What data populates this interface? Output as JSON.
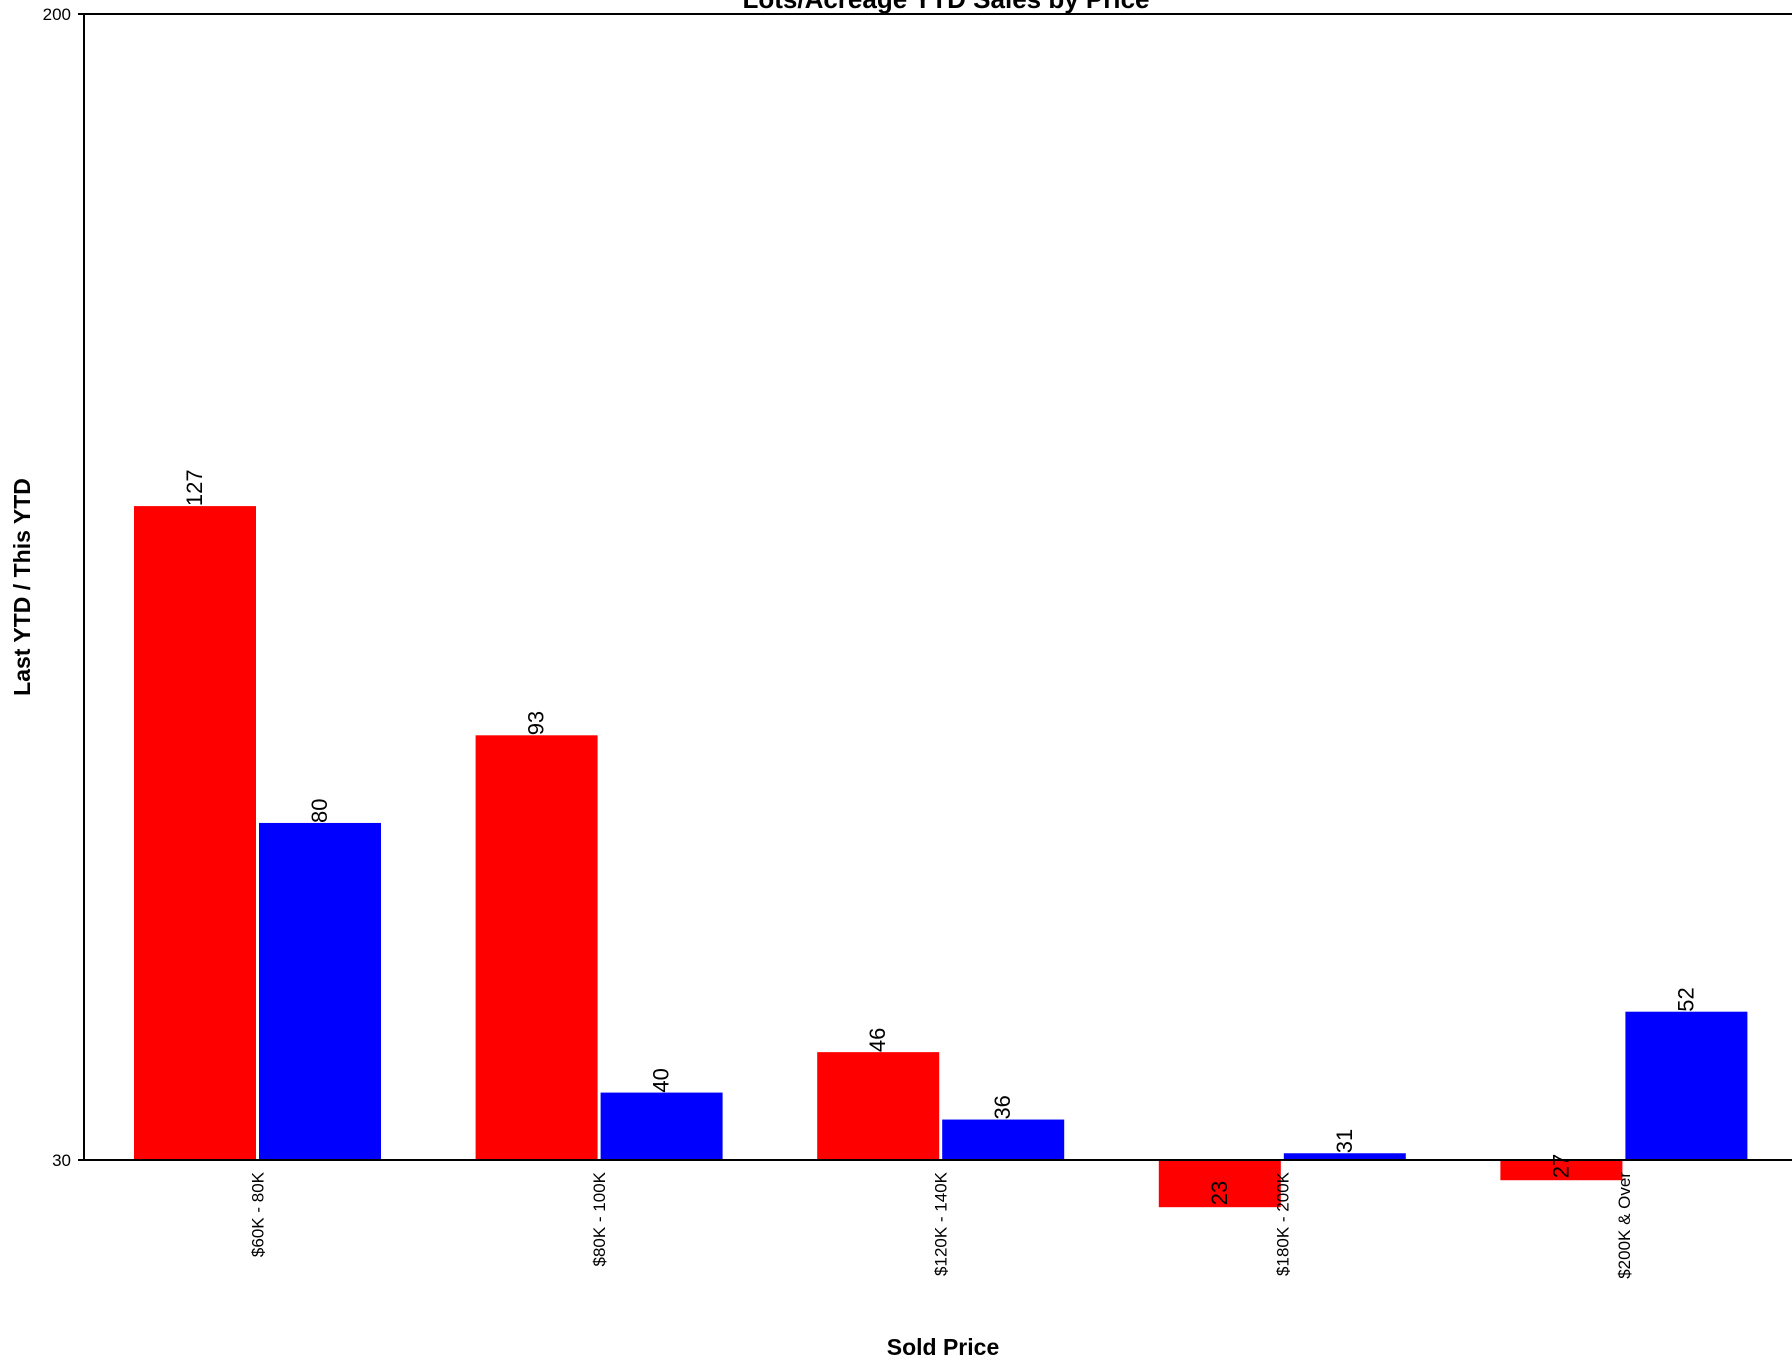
{
  "chart_data": {
    "type": "bar",
    "title": "Lots/Acreage YTD Sales by Price",
    "xlabel": "Sold Price",
    "ylabel": "Last YTD / This YTD",
    "ylim": [
      30,
      200
    ],
    "yticks": [
      30,
      200
    ],
    "grid": false,
    "legend": "none",
    "categories": [
      "$60K - 80K",
      "$80K - 100K",
      "$120K - 140K",
      "$180K - 200K",
      "$200K & Over"
    ],
    "series": [
      {
        "color": "#ff0000",
        "values": [
          127,
          93,
          46,
          23,
          27
        ]
      },
      {
        "color": "#0000ff",
        "values": [
          80,
          40,
          36,
          31,
          52
        ]
      }
    ]
  }
}
